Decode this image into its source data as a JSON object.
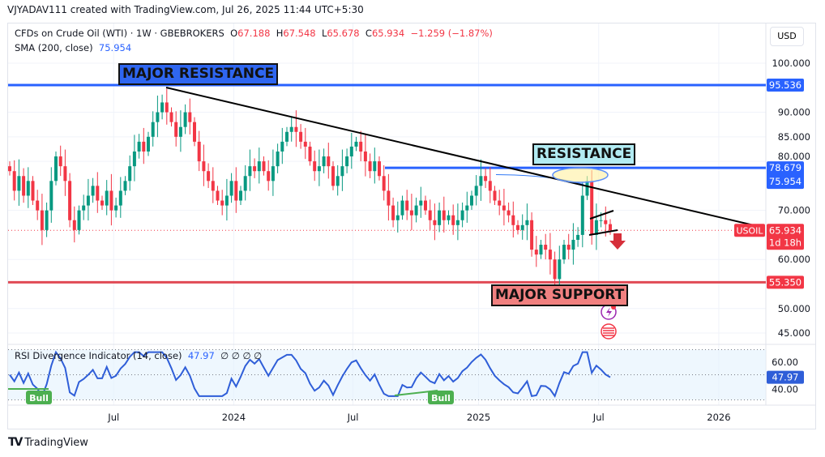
{
  "header": {
    "credit": "VJYADAV111 created with TradingView.com, Jul 26, 2025 11:44 UTC+5:30",
    "symbol": "CFDs on Crude Oil (WTI) · 1W · GBEBROKERS",
    "o_label": "O",
    "o": "67.188",
    "h_label": "H",
    "h": "67.548",
    "l_label": "L",
    "l": "65.678",
    "c_label": "C",
    "c": "65.934",
    "change": "−1.259 (−1.87%)",
    "sma_label": "SMA (200, close)",
    "sma_value": "75.954",
    "currency": "USD"
  },
  "annotations": {
    "major_resistance": "MAJOR RESISTANCE",
    "resistance": "RESISTANCE",
    "major_support": "MAJOR SUPPORT"
  },
  "price_tags": {
    "major_resistance": "95.536",
    "resistance": "78.679",
    "sma": "75.954",
    "symbol": "USOIL",
    "last": "65.934",
    "countdown": "1d 18h",
    "support": "55.350"
  },
  "rsi": {
    "label": "RSI Divergence Indicator (14, close)",
    "value": "47.97",
    "extras": "∅ ∅ ∅ ∅",
    "tag": "47.97",
    "bull1": "Bull",
    "bull2": "Bull",
    "ticks": [
      "60.00",
      "40.00"
    ]
  },
  "footer": {
    "brand": "TradingView"
  },
  "colors": {
    "up": "#089981",
    "down": "#f23645",
    "blue": "#2962ff",
    "support": "#e04a55"
  },
  "chart_data": {
    "type": "candlestick",
    "title": "CFDs on Crude Oil (WTI) · 1W",
    "ylim": [
      45,
      100
    ],
    "y_ticks": [
      "100.000",
      "90.000",
      "85.000",
      "80.000",
      "70.000",
      "60.000",
      "50.000",
      "45.000"
    ],
    "y_tick_values": [
      100,
      90,
      85,
      80,
      70,
      60,
      50,
      45
    ],
    "x_ticks": [
      "Jul",
      "2024",
      "Jul",
      "2025",
      "Jul",
      "2026"
    ],
    "x_tick_weeks": [
      22.5,
      48.5,
      74.3,
      101.5,
      127.5,
      153.5
    ],
    "closes": [
      78,
      74,
      77,
      73,
      76,
      72,
      70,
      66,
      70,
      76,
      81,
      79,
      76,
      68,
      66,
      70,
      71,
      73,
      75,
      72,
      71,
      74,
      70,
      71,
      74,
      76,
      79,
      82,
      84,
      82,
      85,
      88,
      90,
      92,
      90,
      88,
      85,
      87,
      90,
      88,
      84,
      80,
      78,
      76,
      74,
      72,
      71,
      73,
      76,
      72,
      74,
      77,
      79,
      78,
      80,
      78,
      76,
      79,
      82,
      84,
      86,
      87,
      86,
      84,
      83,
      80,
      78,
      79,
      81,
      79,
      75,
      77,
      79,
      81,
      83,
      84,
      82,
      80,
      78,
      80,
      77,
      74,
      71,
      68,
      69,
      72,
      70,
      69,
      71,
      72,
      70,
      68,
      67,
      70,
      68,
      69,
      67,
      68,
      70,
      71,
      73,
      75,
      77,
      76,
      74,
      72,
      71,
      70,
      69,
      67,
      66,
      67,
      68,
      62,
      61,
      63,
      62,
      60,
      56,
      60,
      63,
      62,
      64,
      65,
      73,
      76,
      65,
      68,
      68,
      67.2,
      65.934
    ],
    "levels": {
      "major_resistance": 95.536,
      "resistance": 78.679,
      "sma200": 75.954,
      "last": 65.934,
      "support": 55.35
    },
    "rsi_last": 47.97,
    "rsi_ylim": [
      30,
      70
    ]
  }
}
